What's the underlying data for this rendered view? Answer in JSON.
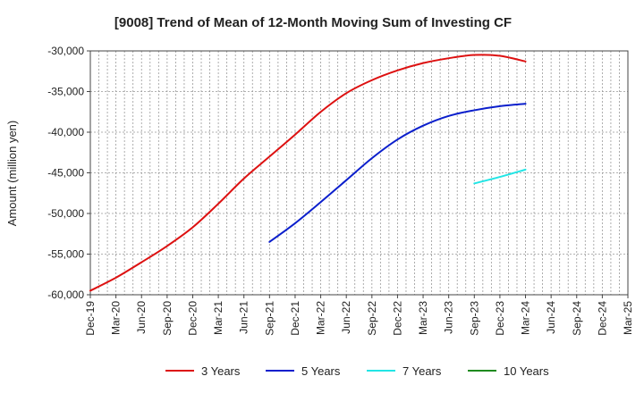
{
  "chart_data": {
    "type": "line",
    "title": "[9008]  Trend of Mean of 12-Month Moving Sum of Investing CF",
    "ylabel": "Amount (million yen)",
    "xlabel": "",
    "ylim": [
      -60000,
      -30000
    ],
    "xlim": [
      "2019-12",
      "2025-03"
    ],
    "y_ticks": [
      -30000,
      -35000,
      -40000,
      -45000,
      -50000,
      -55000,
      -60000
    ],
    "y_tick_labels": [
      "-30,000",
      "-35,000",
      "-40,000",
      "-45,000",
      "-50,000",
      "-55,000",
      "-60,000"
    ],
    "x_ticks": [
      "2019-12",
      "2020-03",
      "2020-06",
      "2020-09",
      "2020-12",
      "2021-03",
      "2021-06",
      "2021-09",
      "2021-12",
      "2022-03",
      "2022-06",
      "2022-09",
      "2022-12",
      "2023-03",
      "2023-06",
      "2023-09",
      "2023-12",
      "2024-03",
      "2024-06",
      "2024-09",
      "2024-12",
      "2025-03"
    ],
    "x_tick_labels": [
      "Dec-19",
      "Mar-20",
      "Jun-20",
      "Sep-20",
      "Dec-20",
      "Mar-21",
      "Jun-21",
      "Sep-21",
      "Dec-21",
      "Mar-22",
      "Jun-22",
      "Sep-22",
      "Dec-22",
      "Mar-23",
      "Jun-23",
      "Sep-23",
      "Dec-23",
      "Mar-24",
      "Jun-24",
      "Sep-24",
      "Dec-24",
      "Mar-25"
    ],
    "grid": true,
    "legend_position": "bottom",
    "series": [
      {
        "name": "3 Years",
        "color": "#dd1111",
        "x": [
          "2019-12",
          "2020-03",
          "2020-06",
          "2020-09",
          "2020-12",
          "2021-03",
          "2021-06",
          "2021-09",
          "2021-12",
          "2022-03",
          "2022-06",
          "2022-09",
          "2022-12",
          "2023-03",
          "2023-06",
          "2023-09",
          "2023-12",
          "2024-03"
        ],
        "y": [
          -59500,
          -57900,
          -56000,
          -54000,
          -51700,
          -48800,
          -45700,
          -43000,
          -40300,
          -37500,
          -35200,
          -33600,
          -32400,
          -31500,
          -30900,
          -30500,
          -30600,
          -31300
        ]
      },
      {
        "name": "5 Years",
        "color": "#0b1fcc",
        "x": [
          "2021-09",
          "2021-12",
          "2022-03",
          "2022-06",
          "2022-09",
          "2022-12",
          "2023-03",
          "2023-06",
          "2023-09",
          "2023-12",
          "2024-03"
        ],
        "y": [
          -53500,
          -51200,
          -48600,
          -45900,
          -43200,
          -40900,
          -39200,
          -38000,
          -37300,
          -36800,
          -36500
        ]
      },
      {
        "name": "7 Years",
        "color": "#22e5e5",
        "x": [
          "2023-09",
          "2023-12",
          "2024-03"
        ],
        "y": [
          -46300,
          -45500,
          -44600
        ]
      },
      {
        "name": "10 Years",
        "color": "#1f8a1f",
        "x": [],
        "y": []
      }
    ]
  }
}
